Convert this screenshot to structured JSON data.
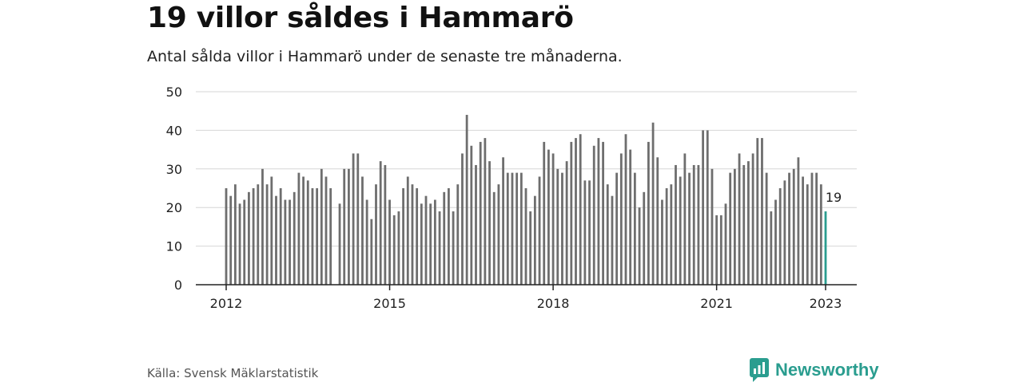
{
  "header": {
    "title": "19 villor såldes i Hammarö",
    "subtitle": "Antal sålda villor i Hammarö under de senaste tre månaderna."
  },
  "footer": {
    "source": "Källa: Svensk Mäklarstatistik",
    "brand": "Newsworthy"
  },
  "colors": {
    "bar": "#6e6e6e",
    "highlight": "#2a9d8f",
    "grid": "#d6d6d6",
    "axis": "#222222"
  },
  "icons": {
    "brand_logo": "newsworthy-logo-icon"
  },
  "chart_data": {
    "type": "bar",
    "title": "19 villor såldes i Hammarö",
    "subtitle": "Antal sålda villor i Hammarö under de senaste tre månaderna.",
    "xlabel": "",
    "ylabel": "",
    "ylim": [
      0,
      50
    ],
    "yticks": [
      0,
      10,
      20,
      30,
      40,
      50
    ],
    "xtick_labels": [
      "2012",
      "2015",
      "2018",
      "2021",
      "2023"
    ],
    "grid": true,
    "start": "2012-01",
    "end": "2023-01",
    "x": [
      "2012-01",
      "2012-02",
      "2012-03",
      "2012-04",
      "2012-05",
      "2012-06",
      "2012-07",
      "2012-08",
      "2012-09",
      "2012-10",
      "2012-11",
      "2012-12",
      "2013-01",
      "2013-02",
      "2013-03",
      "2013-04",
      "2013-05",
      "2013-06",
      "2013-07",
      "2013-08",
      "2013-09",
      "2013-10",
      "2013-11",
      "2013-12",
      "2014-01",
      "2014-02",
      "2014-03",
      "2014-04",
      "2014-05",
      "2014-06",
      "2014-07",
      "2014-08",
      "2014-09",
      "2014-10",
      "2014-11",
      "2014-12",
      "2015-01",
      "2015-02",
      "2015-03",
      "2015-04",
      "2015-05",
      "2015-06",
      "2015-07",
      "2015-08",
      "2015-09",
      "2015-10",
      "2015-11",
      "2015-12",
      "2016-01",
      "2016-02",
      "2016-03",
      "2016-04",
      "2016-05",
      "2016-06",
      "2016-07",
      "2016-08",
      "2016-09",
      "2016-10",
      "2016-11",
      "2016-12",
      "2017-01",
      "2017-02",
      "2017-03",
      "2017-04",
      "2017-05",
      "2017-06",
      "2017-07",
      "2017-08",
      "2017-09",
      "2017-10",
      "2017-11",
      "2017-12",
      "2018-01",
      "2018-02",
      "2018-03",
      "2018-04",
      "2018-05",
      "2018-06",
      "2018-07",
      "2018-08",
      "2018-09",
      "2018-10",
      "2018-11",
      "2018-12",
      "2019-01",
      "2019-02",
      "2019-03",
      "2019-04",
      "2019-05",
      "2019-06",
      "2019-07",
      "2019-08",
      "2019-09",
      "2019-10",
      "2019-11",
      "2019-12",
      "2020-01",
      "2020-02",
      "2020-03",
      "2020-04",
      "2020-05",
      "2020-06",
      "2020-07",
      "2020-08",
      "2020-09",
      "2020-10",
      "2020-11",
      "2020-12",
      "2021-01",
      "2021-02",
      "2021-03",
      "2021-04",
      "2021-05",
      "2021-06",
      "2021-07",
      "2021-08",
      "2021-09",
      "2021-10",
      "2021-11",
      "2021-12",
      "2022-01",
      "2022-02",
      "2022-03",
      "2022-04",
      "2022-05",
      "2022-06",
      "2022-07",
      "2022-08",
      "2022-09",
      "2022-10",
      "2022-11",
      "2022-12",
      "2023-01"
    ],
    "values": [
      25,
      23,
      26,
      21,
      22,
      24,
      25,
      26,
      30,
      26,
      28,
      23,
      25,
      22,
      22,
      24,
      29,
      28,
      27,
      25,
      25,
      30,
      28,
      25,
      null,
      21,
      30,
      30,
      34,
      34,
      28,
      22,
      17,
      26,
      32,
      31,
      22,
      18,
      19,
      25,
      28,
      26,
      25,
      21,
      23,
      21,
      22,
      19,
      24,
      25,
      19,
      26,
      34,
      44,
      36,
      31,
      37,
      38,
      32,
      24,
      26,
      33,
      29,
      29,
      29,
      29,
      25,
      19,
      23,
      28,
      37,
      35,
      34,
      30,
      29,
      32,
      37,
      38,
      39,
      27,
      27,
      36,
      38,
      37,
      26,
      23,
      29,
      34,
      39,
      35,
      29,
      20,
      24,
      37,
      42,
      33,
      22,
      25,
      26,
      31,
      28,
      34,
      29,
      31,
      31,
      40,
      40,
      30,
      18,
      18,
      21,
      29,
      30,
      34,
      31,
      32,
      34,
      38,
      38,
      29,
      19,
      22,
      25,
      27,
      29,
      30,
      33,
      28,
      26,
      29,
      29,
      26,
      19
    ],
    "highlight": {
      "x": "2023-01",
      "value": 19,
      "label": "19"
    }
  }
}
